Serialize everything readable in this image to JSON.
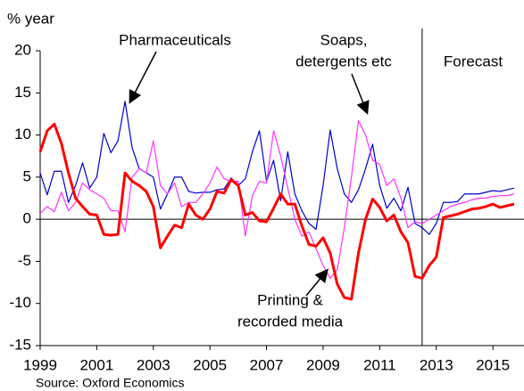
{
  "chart_data": {
    "type": "line",
    "y_label": "% year",
    "source": "Source: Oxford Economics",
    "x": [
      1999,
      1999.25,
      1999.5,
      1999.75,
      2000,
      2000.25,
      2000.5,
      2000.75,
      2001,
      2001.25,
      2001.5,
      2001.75,
      2002,
      2002.25,
      2002.5,
      2002.75,
      2003,
      2003.25,
      2003.5,
      2003.75,
      2004,
      2004.25,
      2004.5,
      2004.75,
      2005,
      2005.25,
      2005.5,
      2005.75,
      2006,
      2006.25,
      2006.5,
      2006.75,
      2007,
      2007.25,
      2007.5,
      2007.75,
      2008,
      2008.25,
      2008.5,
      2008.75,
      2009,
      2009.25,
      2009.5,
      2009.75,
      2010,
      2010.25,
      2010.5,
      2010.75,
      2011,
      2011.25,
      2011.5,
      2011.75,
      2012,
      2012.25,
      2012.5,
      2012.75,
      2013,
      2013.25,
      2013.5,
      2013.75,
      2014,
      2014.25,
      2014.5,
      2014.75,
      2015,
      2015.25,
      2015.5,
      2015.75
    ],
    "series": [
      {
        "name": "Pharmaceuticals",
        "color": "#0000cc",
        "width": 1.2,
        "values": [
          5.5,
          2.9,
          5.7,
          5.7,
          2,
          4,
          6.7,
          3.7,
          5,
          10.2,
          7.9,
          9.3,
          14,
          8.5,
          6,
          5.5,
          5,
          1.2,
          3,
          5,
          5,
          3.3,
          3.1,
          3.2,
          3.2,
          3.5,
          3.6,
          4.9,
          4,
          4.8,
          8,
          10.5,
          4.5,
          7,
          2.2,
          8,
          3,
          1,
          -0.5,
          -1.2,
          4,
          10.6,
          6,
          3,
          2,
          3.5,
          6,
          8.9,
          4,
          1.3,
          2.5,
          1,
          3.8,
          -0.5,
          -1,
          -1.8,
          -0.5,
          2,
          2,
          2.1,
          3,
          3,
          3,
          3.2,
          3.4,
          3.3,
          3.5,
          3.7
        ]
      },
      {
        "name": "Soaps, detergents etc",
        "color": "#ff33ff",
        "width": 1.2,
        "values": [
          0.7,
          1.5,
          0.9,
          3.2,
          1,
          2,
          4.3,
          3.5,
          3,
          2.5,
          1,
          1,
          -1.5,
          5,
          6,
          5.5,
          9.3,
          4,
          3,
          4.3,
          1.5,
          2,
          2,
          3,
          4.3,
          6.2,
          4.8,
          4.5,
          4.5,
          -2,
          2.8,
          4.5,
          4.3,
          10.5,
          7.5,
          3.7,
          0,
          -2,
          -1.5,
          -3.5,
          -5.5,
          -7,
          -6,
          -1,
          5,
          11.7,
          10,
          7,
          6.5,
          4,
          4.8,
          2.5,
          -1,
          -0.3,
          -0.5,
          0,
          0.5,
          1,
          1.5,
          1.8,
          2,
          2.3,
          2.5,
          2.5,
          2.7,
          2.8,
          2.8,
          3
        ]
      },
      {
        "name": "Printing & recorded media",
        "color": "#ff0000",
        "width": 3,
        "values": [
          8,
          10.5,
          11.3,
          9,
          5.5,
          2.5,
          1.5,
          0.6,
          0.5,
          -1.8,
          -1.9,
          -1.8,
          5.5,
          4.5,
          4,
          3.3,
          1.5,
          -3.4,
          -2,
          -0.7,
          -1,
          1.8,
          0.5,
          0,
          1.2,
          3.3,
          3.1,
          4.7,
          4,
          0.5,
          0.8,
          -0.2,
          -0.3,
          1.3,
          3,
          1.8,
          1.8,
          -0.8,
          -3,
          -3.2,
          -2.2,
          -4,
          -7.7,
          -9.3,
          -9.5,
          -4,
          0,
          2.4,
          1.4,
          -0.2,
          0.5,
          -1.5,
          -2.8,
          -6.8,
          -7,
          -5.5,
          -4.5,
          0.2,
          0.4,
          0.6,
          0.9,
          1.2,
          1.3,
          1.5,
          1.8,
          1.4,
          1.6,
          1.8
        ]
      }
    ],
    "annotations": [
      {
        "lines": [
          "Pharmaceuticals"
        ],
        "series": 0
      },
      {
        "lines": [
          "Soaps,",
          "detergents etc"
        ],
        "series": 1
      },
      {
        "lines": [
          "Printing &",
          "recorded media"
        ],
        "series": 2
      },
      {
        "lines": [
          "Forecast"
        ]
      }
    ],
    "forecast_start": 2012.5,
    "xlim": [
      1999,
      2016.1
    ],
    "xticks": [
      1999,
      2001,
      2003,
      2005,
      2007,
      2009,
      2011,
      2013,
      2015
    ],
    "ylim": [
      -15,
      20
    ],
    "yticks": [
      -15,
      -10,
      -5,
      0,
      5,
      10,
      15,
      20
    ],
    "grid": false
  }
}
